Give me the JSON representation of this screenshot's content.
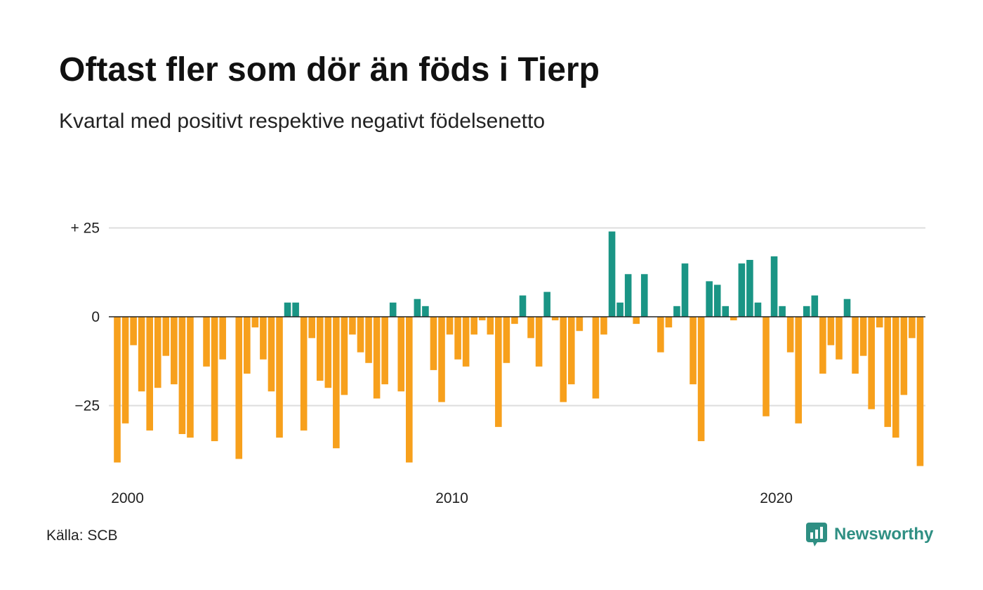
{
  "title": "Oftast fler som dör än föds i Tierp",
  "subtitle": "Kvartal med positivt respektive negativt födelsenetto",
  "source": "Källa: SCB",
  "brand": {
    "name": "Newsworthy",
    "icon": "newsworthy-logo-icon",
    "color": "#2f8f83"
  },
  "colors": {
    "positive": "#1a9585",
    "negative": "#f7a01c",
    "grid": "#dddddd",
    "axis": "#222222"
  },
  "chart_data": {
    "type": "bar",
    "title": "Oftast fler som dör än föds i Tierp",
    "subtitle": "Kvartal med positivt respektive negativt födelsenetto",
    "xlabel": "",
    "ylabel": "",
    "ylim": [
      -44,
      27
    ],
    "y_ticks": [
      {
        "value": 25,
        "label": "+ 25"
      },
      {
        "value": 0,
        "label": "0"
      },
      {
        "value": -25,
        "label": "−25"
      }
    ],
    "x_ticks": [
      {
        "year": 2000,
        "label": "2000"
      },
      {
        "year": 2010,
        "label": "2010"
      },
      {
        "year": 2020,
        "label": "2020"
      }
    ],
    "grid": true,
    "legend": "none",
    "start_year": 2000,
    "start_quarter": 1,
    "values": [
      -41,
      -30,
      -8,
      -21,
      -32,
      -20,
      -11,
      -19,
      -33,
      -34,
      0,
      -14,
      -35,
      -12,
      0,
      -40,
      -16,
      -3,
      -12,
      -21,
      -34,
      4,
      4,
      -32,
      -6,
      -18,
      -20,
      -37,
      -22,
      -5,
      -10,
      -13,
      -23,
      -19,
      4,
      -21,
      -41,
      5,
      3,
      -15,
      -24,
      -5,
      -12,
      -14,
      -5,
      -1,
      -5,
      -31,
      -13,
      -2,
      6,
      -6,
      -14,
      7,
      -1,
      -24,
      -19,
      -4,
      0,
      -23,
      -5,
      24,
      4,
      12,
      -2,
      12,
      0,
      -10,
      -3,
      3,
      15,
      -19,
      -35,
      10,
      9,
      3,
      -1,
      15,
      16,
      4,
      -28,
      17,
      3,
      -10,
      -30,
      3,
      6,
      -16,
      -8,
      -12,
      5,
      -16,
      -11,
      -26,
      -3,
      -31,
      -34,
      -22,
      -6,
      -42
    ]
  }
}
